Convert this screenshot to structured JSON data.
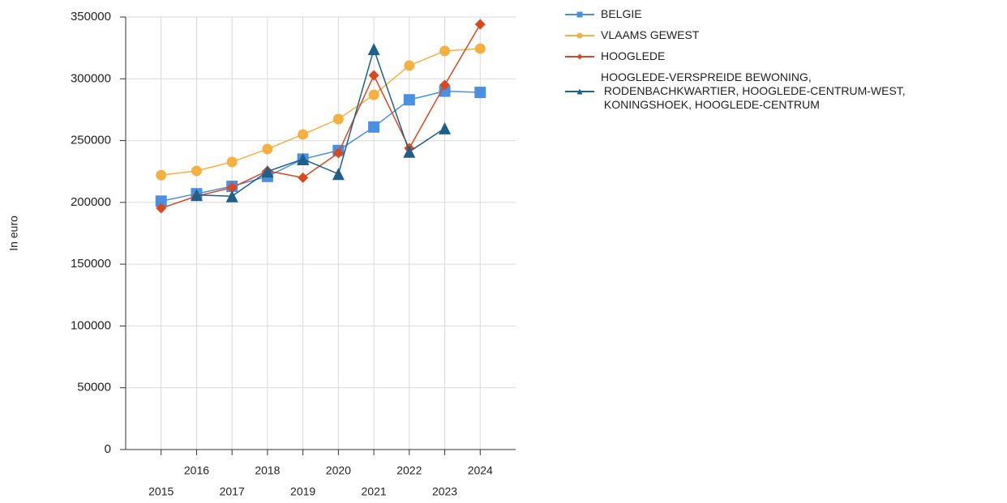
{
  "chart_data": {
    "type": "line",
    "y_label": "In euro",
    "x": [
      2015,
      2016,
      2017,
      2018,
      2019,
      2020,
      2021,
      2022,
      2023,
      2024
    ],
    "xlim": [
      2014,
      2025
    ],
    "xticks": [
      2015,
      2016,
      2017,
      2018,
      2019,
      2020,
      2021,
      2022,
      2023,
      2024
    ],
    "ylim": [
      0,
      350000
    ],
    "yticks": [
      0,
      50000,
      100000,
      150000,
      200000,
      250000,
      300000,
      350000
    ],
    "grid": true,
    "legend": "right",
    "series": [
      {
        "name": "BELGIE",
        "color": "#4a90e2",
        "marker": "square",
        "values": [
          201000,
          207000,
          213000,
          221000,
          235000,
          242000,
          261000,
          283000,
          290000,
          289000
        ]
      },
      {
        "name": "VLAAMS GEWEST",
        "color": "#f5b041",
        "marker": "circle",
        "values": [
          222000,
          225500,
          232700,
          243200,
          255000,
          267400,
          287000,
          310700,
          322500,
          324400
        ]
      },
      {
        "name": "HOOGLEDE",
        "color": "#d9481f",
        "marker": "diamond",
        "values": [
          195300,
          205000,
          212000,
          225500,
          220000,
          240000,
          302800,
          243800,
          295000,
          344100
        ]
      },
      {
        "name": "HOOGLEDE-VERSPREIDE BEWONING, RODENBACHKWARTIER, HOOGLEDE-CENTRUM-WEST, KONINGSHOEK, HOOGLEDE-CENTRUM",
        "color": "#1f6088",
        "marker": "triangle",
        "values": [
          null,
          206000,
          205000,
          225000,
          235000,
          223000,
          324000,
          241000,
          260000,
          null
        ]
      }
    ]
  }
}
